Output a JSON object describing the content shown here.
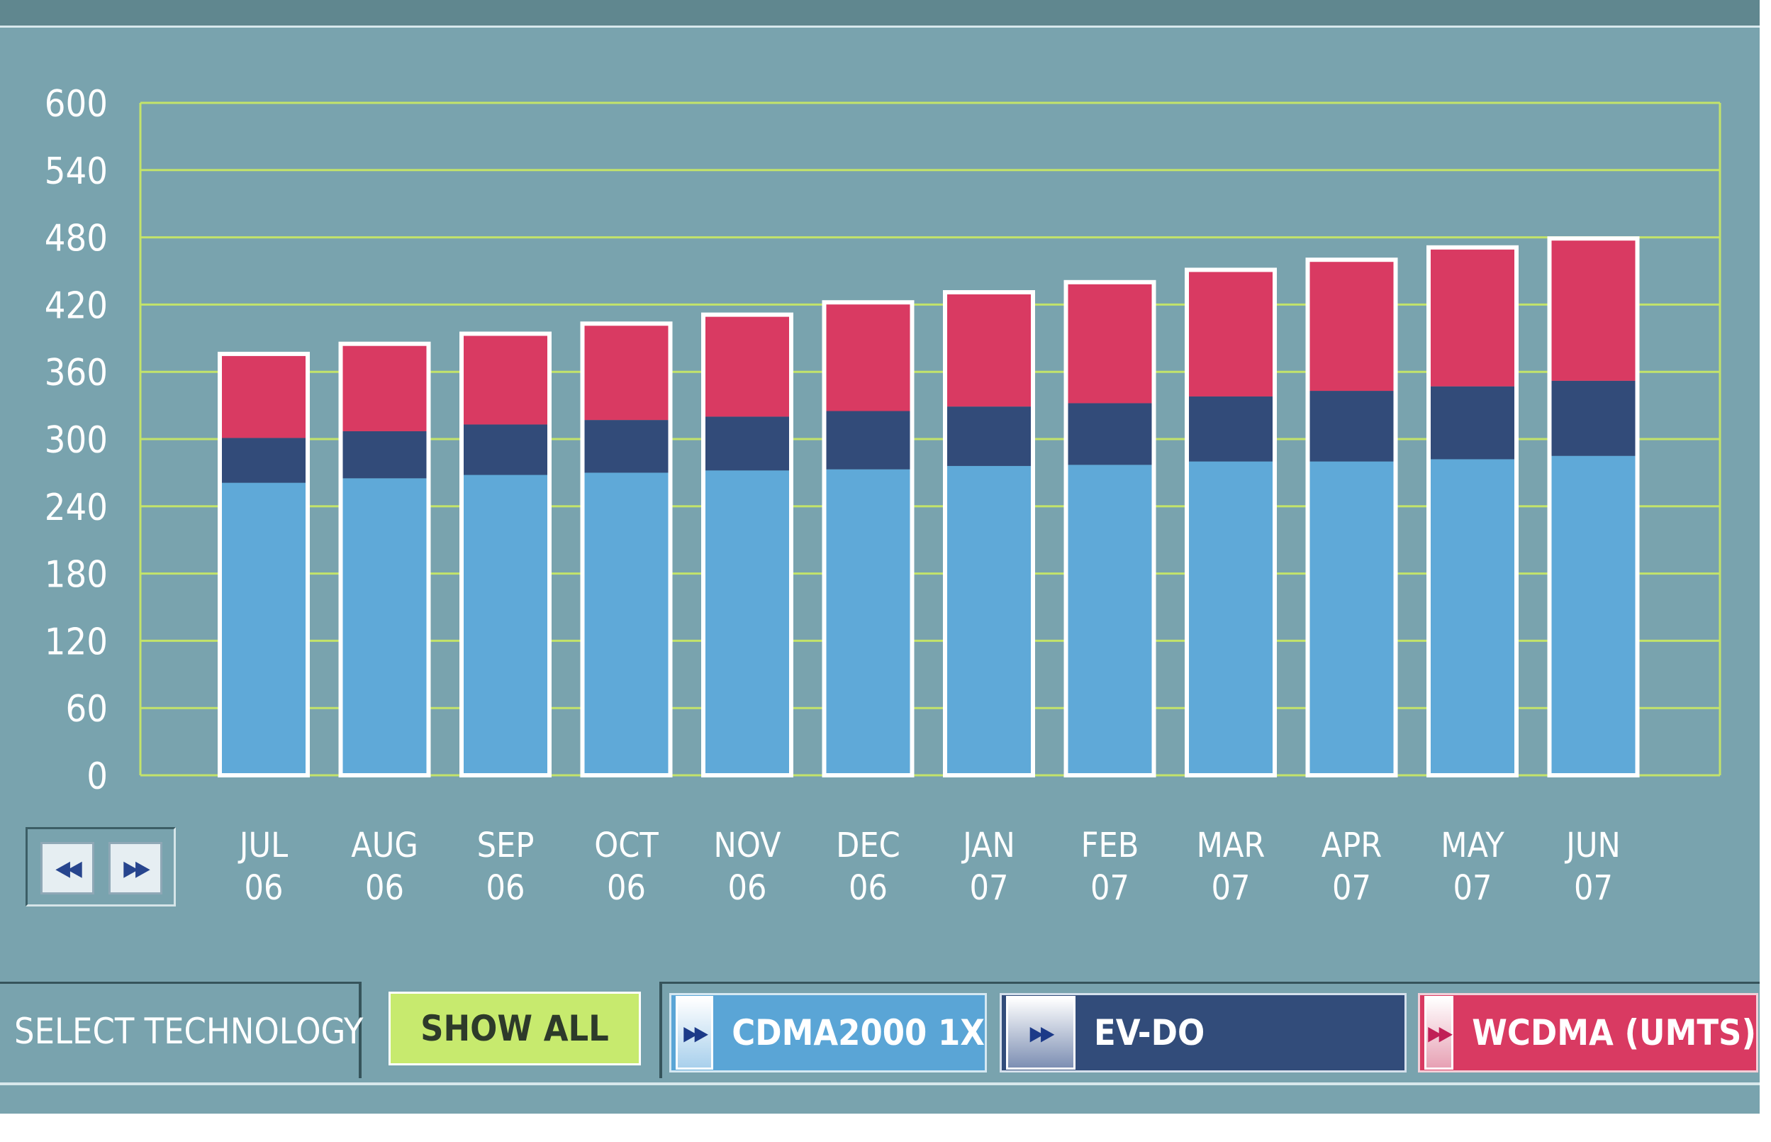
{
  "chart_data": {
    "type": "bar",
    "stacked": true,
    "categories": [
      [
        "JUL",
        "06"
      ],
      [
        "AUG",
        "06"
      ],
      [
        "SEP",
        "06"
      ],
      [
        "OCT",
        "06"
      ],
      [
        "NOV",
        "06"
      ],
      [
        "DEC",
        "06"
      ],
      [
        "JAN",
        "07"
      ],
      [
        "FEB",
        "07"
      ],
      [
        "MAR",
        "07"
      ],
      [
        "APR",
        "07"
      ],
      [
        "MAY",
        "07"
      ],
      [
        "JUN",
        "07"
      ]
    ],
    "series": [
      {
        "name": "CDMA2000 1X",
        "color": "#5fa9d8",
        "values": [
          261,
          265,
          268,
          270,
          272,
          273,
          276,
          277,
          280,
          280,
          282,
          285
        ]
      },
      {
        "name": "EV-DO",
        "color": "#324b79",
        "values": [
          40,
          42,
          45,
          47,
          48,
          52,
          53,
          55,
          58,
          63,
          65,
          67
        ]
      },
      {
        "name": "WCDMA (UMTS)",
        "color": "#d93a62",
        "values": [
          75,
          78,
          81,
          86,
          91,
          97,
          102,
          108,
          113,
          117,
          124,
          127
        ]
      }
    ],
    "yticks": [
      0,
      60,
      120,
      180,
      240,
      300,
      360,
      420,
      480,
      540,
      600
    ],
    "ylim": [
      0,
      600
    ],
    "grid": true,
    "colors": {
      "grid": "#c3e36a",
      "background": "#79a3ae",
      "bar_border": "#ffffff"
    }
  },
  "navigation": {
    "prev_icon": "double-chevron-left-icon",
    "next_icon": "double-chevron-right-icon"
  },
  "controls": {
    "select_label": "SELECT TECHNOLOGY",
    "show_all_label": "SHOW ALL",
    "technologies": [
      {
        "label": "CDMA2000 1X",
        "icon": "double-chevron-right-icon"
      },
      {
        "label": "EV-DO",
        "icon": "double-chevron-right-icon"
      },
      {
        "label": "WCDMA (UMTS)",
        "icon": "double-chevron-right-icon"
      }
    ]
  }
}
